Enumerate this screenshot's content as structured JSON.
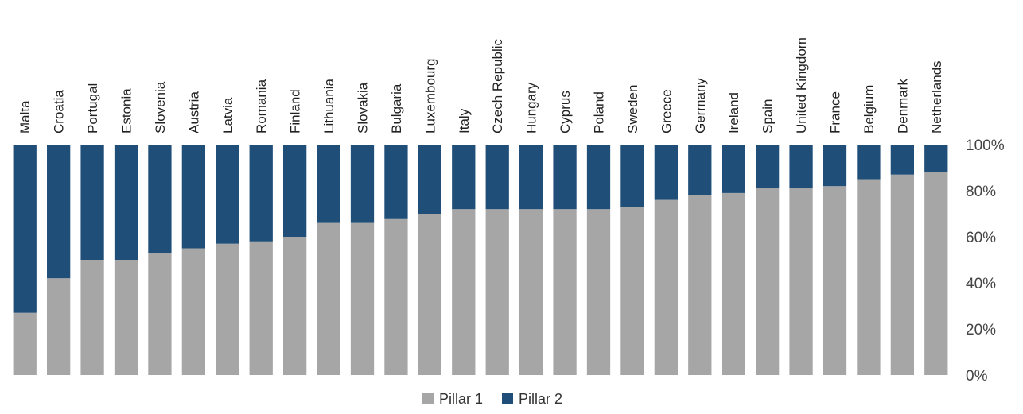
{
  "chart_data": {
    "type": "bar",
    "stacked": true,
    "percent": true,
    "categories": [
      "Malta",
      "Croatia",
      "Portugal",
      "Estonia",
      "Slovenia",
      "Austria",
      "Latvia",
      "Romania",
      "Finland",
      "Lithuania",
      "Slovakia",
      "Bulgaria",
      "Luxembourg",
      "Italy",
      "Czech Republic",
      "Hungary",
      "Cyprus",
      "Poland",
      "Sweden",
      "Greece",
      "Germany",
      "Ireland",
      "Spain",
      "United Kingdom",
      "France",
      "Belgium",
      "Denmark",
      "Netherlands"
    ],
    "series": [
      {
        "name": "Pillar 1",
        "values": [
          27,
          42,
          50,
          50,
          53,
          55,
          57,
          58,
          60,
          66,
          66,
          68,
          70,
          72,
          72,
          72,
          72,
          72,
          73,
          76,
          78,
          79,
          81,
          81,
          82,
          85,
          87,
          88
        ]
      },
      {
        "name": "Pillar 2",
        "values": [
          73,
          58,
          50,
          50,
          47,
          45,
          43,
          42,
          40,
          34,
          34,
          32,
          30,
          28,
          28,
          28,
          28,
          28,
          27,
          24,
          22,
          21,
          19,
          19,
          18,
          15,
          13,
          12
        ]
      }
    ],
    "ylim": [
      0,
      100
    ],
    "yticks": [
      "0%",
      "20%",
      "40%",
      "60%",
      "80%",
      "100%"
    ],
    "y_axis_position": "right",
    "grid": false,
    "legend_position": "bottom",
    "colors": {
      "Pillar 1": "#a6a6a6",
      "Pillar 2": "#1f4e79"
    }
  }
}
